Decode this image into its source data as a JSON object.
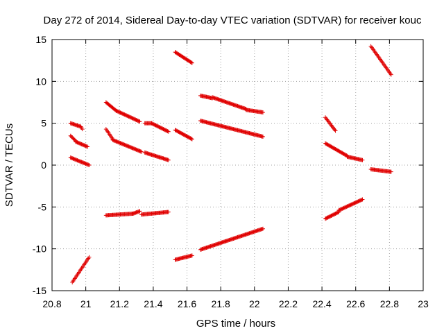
{
  "chart_data": {
    "type": "scatter",
    "title": "Day 272 of 2014, Sidereal Day-to-day VTEC variation (SDTVAR) for receiver kouc",
    "xlabel": "GPS time / hours",
    "ylabel": "SDTVAR / TECUs",
    "xlim": [
      20.8,
      23
    ],
    "ylim": [
      -15,
      15
    ],
    "xticks": [
      20.8,
      21,
      21.2,
      21.4,
      21.6,
      21.8,
      22,
      22.2,
      22.4,
      22.6,
      22.8,
      23
    ],
    "xtick_labels": [
      "20.8",
      "21",
      "21.2",
      "21.4",
      "21.6",
      "21.8",
      "22",
      "22.2",
      "22.4",
      "22.6",
      "22.8",
      "23"
    ],
    "yticks": [
      -15,
      -10,
      -5,
      0,
      5,
      10,
      15
    ],
    "ytick_labels": [
      "-15",
      "-10",
      "-5",
      "0",
      "5",
      "10",
      "15"
    ],
    "grid": true,
    "marker": "plus",
    "color": "#e00000",
    "segments": [
      {
        "x": [
          20.91,
          20.97
        ],
        "y": [
          5.0,
          4.6
        ]
      },
      {
        "x": [
          20.97,
          20.98
        ],
        "y": [
          4.6,
          4.3
        ]
      },
      {
        "x": [
          20.91,
          20.94
        ],
        "y": [
          3.5,
          2.9
        ]
      },
      {
        "x": [
          20.94,
          21.01
        ],
        "y": [
          2.8,
          2.2
        ]
      },
      {
        "x": [
          20.91,
          21.02
        ],
        "y": [
          0.9,
          0.0
        ]
      },
      {
        "x": [
          20.92,
          21.02
        ],
        "y": [
          -14.0,
          -11.0
        ]
      },
      {
        "x": [
          21.12,
          21.18
        ],
        "y": [
          7.5,
          6.5
        ]
      },
      {
        "x": [
          21.18,
          21.32
        ],
        "y": [
          6.5,
          5.2
        ]
      },
      {
        "x": [
          21.35,
          21.39
        ],
        "y": [
          5.0,
          5.0
        ]
      },
      {
        "x": [
          21.39,
          21.49
        ],
        "y": [
          5.0,
          4.0
        ]
      },
      {
        "x": [
          21.12,
          21.16
        ],
        "y": [
          4.3,
          3.1
        ]
      },
      {
        "x": [
          21.16,
          21.33
        ],
        "y": [
          3.0,
          1.6
        ]
      },
      {
        "x": [
          21.35,
          21.49
        ],
        "y": [
          1.5,
          0.6
        ]
      },
      {
        "x": [
          21.12,
          21.28
        ],
        "y": [
          -6.0,
          -5.8
        ]
      },
      {
        "x": [
          21.28,
          21.32
        ],
        "y": [
          -5.8,
          -5.5
        ]
      },
      {
        "x": [
          21.33,
          21.49
        ],
        "y": [
          -5.9,
          -5.6
        ]
      },
      {
        "x": [
          21.53,
          21.63
        ],
        "y": [
          13.5,
          12.2
        ]
      },
      {
        "x": [
          21.53,
          21.63
        ],
        "y": [
          4.2,
          3.1
        ]
      },
      {
        "x": [
          21.53,
          21.63
        ],
        "y": [
          -11.3,
          -10.8
        ]
      },
      {
        "x": [
          21.68,
          21.75
        ],
        "y": [
          8.3,
          8.0
        ]
      },
      {
        "x": [
          21.75,
          21.95
        ],
        "y": [
          8.1,
          6.7
        ]
      },
      {
        "x": [
          21.95,
          22.05
        ],
        "y": [
          6.6,
          6.3
        ]
      },
      {
        "x": [
          21.68,
          22.05
        ],
        "y": [
          5.3,
          3.4
        ]
      },
      {
        "x": [
          21.68,
          22.05
        ],
        "y": [
          -10.1,
          -7.6
        ]
      },
      {
        "x": [
          22.42,
          22.48
        ],
        "y": [
          5.7,
          4.1
        ]
      },
      {
        "x": [
          22.42,
          22.55
        ],
        "y": [
          2.6,
          1.1
        ]
      },
      {
        "x": [
          22.55,
          22.64
        ],
        "y": [
          1.0,
          0.6
        ]
      },
      {
        "x": [
          22.42,
          22.5
        ],
        "y": [
          -6.4,
          -5.6
        ]
      },
      {
        "x": [
          22.5,
          22.64
        ],
        "y": [
          -5.4,
          -4.1
        ]
      },
      {
        "x": [
          22.69,
          22.81
        ],
        "y": [
          14.2,
          10.8
        ]
      },
      {
        "x": [
          22.69,
          22.81
        ],
        "y": [
          -0.5,
          -0.8
        ]
      }
    ]
  }
}
